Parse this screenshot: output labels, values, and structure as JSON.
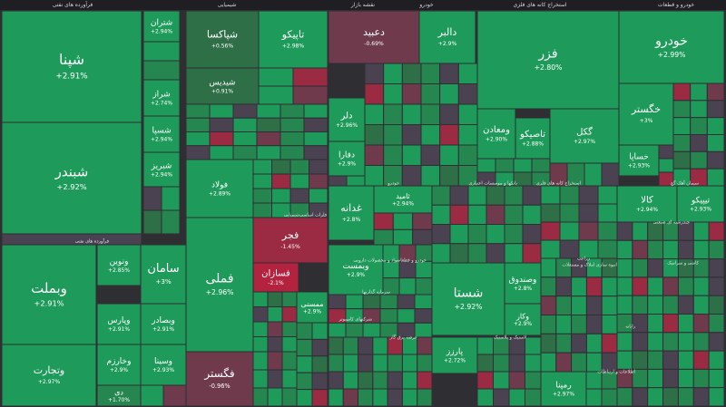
{
  "page": {
    "title": "نقشه بازار"
  },
  "topbar": {
    "market_map": "نقشه بازار",
    "pharma": "فرآورده های نفتی",
    "chemicals": "شیمیایی",
    "banks": "خودرو",
    "metals": "استخراج کانه های فلزی",
    "basic_metals": "خودرو و قطعات"
  },
  "colors": {
    "strong_up": "#1e9b5a",
    "up": "#25864f",
    "mild_up": "#2f6f47",
    "flat": "#4a4250",
    "mild_down": "#6e3a4c",
    "down": "#9b2a43",
    "strong_down": "#b3223f",
    "separator": "#2e2e33"
  },
  "chart_data": {
    "type": "treemap",
    "sectors": [
      "فرآورده های نفتی",
      "شیمیایی",
      "خودرو",
      "استخراج کانه های فلزی",
      "خودرو و قطعات",
      "بانکها و موسسات اعتباری",
      "فلزات اساسی",
      "مواد و محصولات دارویی",
      "سیمان آهک گچ",
      "چندرشته ای صنعتی",
      "شرکتهای کامپیوتر",
      "عرضه برق گاز",
      "سرمایه گذاریها",
      "انبوه سازی املاک و مستغلات",
      "لاستیک و پلاستیک",
      "زراعت",
      "رایانه",
      "کاشی و سرامیک",
      "اطلاعات و ارتباطات"
    ],
    "tiles": [
      {
        "symbol": "شپنا",
        "change": "+2.91%"
      },
      {
        "symbol": "شبندر",
        "change": "+2.92%"
      },
      {
        "symbol": "شتران",
        "change": "+2.94%"
      },
      {
        "symbol": "شراز",
        "change": "+2.74%"
      },
      {
        "symbol": "شسپا",
        "change": "+2.94%"
      },
      {
        "symbol": "شبریز",
        "change": "+2.94%"
      },
      {
        "symbol": "وبملت",
        "change": "+2.91%"
      },
      {
        "symbol": "وتجارت",
        "change": "+2.97%"
      },
      {
        "symbol": "ونوین",
        "change": "+2.85%"
      },
      {
        "symbol": "سامان",
        "change": "+3%"
      },
      {
        "symbol": "وپارس",
        "change": "+2.91%"
      },
      {
        "symbol": "وبصادر",
        "change": "+2.91%"
      },
      {
        "symbol": "شپاکسا",
        "change": "+0.56%"
      },
      {
        "symbol": "تاپیکو",
        "change": "+2.98%"
      },
      {
        "symbol": "شیدیس",
        "change": "+0.91%"
      },
      {
        "symbol": "دعبید",
        "change": "-0.69%"
      },
      {
        "symbol": "دالبر",
        "change": "+2.9%"
      },
      {
        "symbol": "فزر",
        "change": "+2.80%"
      },
      {
        "symbol": "خودرو",
        "change": "+2.99%"
      },
      {
        "symbol": "خگستر",
        "change": "+3%"
      },
      {
        "symbol": "گکل",
        "change": "+2.97%"
      },
      {
        "symbol": "ومعادن",
        "change": "+2.90%"
      },
      {
        "symbol": "تاصیکو",
        "change": "+2.88%"
      },
      {
        "symbol": "خساپا",
        "change": "+2.93%"
      },
      {
        "symbol": "فملی",
        "change": "+2.96%"
      },
      {
        "symbol": "فولاد",
        "change": "+2.89%"
      },
      {
        "symbol": "فجر",
        "change": "-1.45%"
      },
      {
        "symbol": "فسازان",
        "change": "-2.1%"
      },
      {
        "symbol": "فگستر",
        "change": "-0.96%"
      },
      {
        "symbol": "شستا",
        "change": "+2.92%"
      },
      {
        "symbol": "وصندوق",
        "change": "+2.8%"
      },
      {
        "symbol": "غدانه",
        "change": "+2.8%"
      },
      {
        "symbol": "کالا",
        "change": "+2.94%"
      },
      {
        "symbol": "تیپیکو",
        "change": "+2.93%"
      },
      {
        "symbol": "دلر",
        "change": "+2.96%"
      },
      {
        "symbol": "دفارا",
        "change": "+2.9%"
      },
      {
        "symbol": "پارزز",
        "change": "+2.72%"
      },
      {
        "symbol": "رمپنا",
        "change": "+2.97%"
      },
      {
        "symbol": "وبمست",
        "change": "+2.9%"
      },
      {
        "symbol": "ثامید",
        "change": "+2.94%"
      },
      {
        "symbol": "وخارزم",
        "change": "+2.9%"
      },
      {
        "symbol": "دی",
        "change": "+1.70%"
      },
      {
        "symbol": "وسینا",
        "change": "+2.93%"
      },
      {
        "symbol": "وکار",
        "change": "+2.9%"
      },
      {
        "symbol": "ممسنی",
        "change": "+2.9%"
      }
    ]
  }
}
